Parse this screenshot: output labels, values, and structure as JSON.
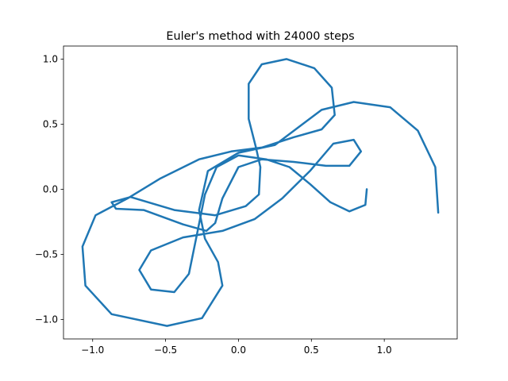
{
  "chart_data": {
    "type": "line",
    "title": "Euler's method with 24000 steps",
    "x": [
      0.88,
      0.87,
      0.76,
      0.63,
      0.49,
      0.35,
      0.19,
      0,
      -0.15,
      -0.23,
      -0.28,
      -0.34,
      -0.44,
      -0.6,
      -0.68,
      -0.6,
      -0.38,
      -0.11,
      0.11,
      0.3,
      0.49,
      0.65,
      0.79,
      0.84,
      0.76,
      0.6,
      0.38,
      0.16,
      0,
      -0.11,
      -0.16,
      -0.22,
      -0.38,
      -0.65,
      -0.84,
      -0.87,
      -0.74,
      -0.44,
      -0.16,
      0.05,
      0.14,
      0.15,
      0.12,
      0.07,
      0.07,
      0.16,
      0.33,
      0.52,
      0.64,
      0.66,
      0.57,
      0.38,
      0.16,
      -0.05,
      -0.27,
      -0.54,
      -0.76,
      -0.98,
      -1.07,
      -1.05,
      -0.87,
      -0.49,
      -0.25,
      -0.11,
      -0.14,
      -0.23,
      -0.27,
      -0.21,
      0,
      0.25,
      0.38,
      0.57,
      0.79,
      1.04,
      1.23,
      1.35,
      1.37
    ],
    "values": [
      0,
      -0.12,
      -0.17,
      -0.1,
      0.04,
      0.17,
      0.23,
      0.26,
      0.17,
      -0.04,
      -0.32,
      -0.65,
      -0.79,
      -0.77,
      -0.62,
      -0.47,
      -0.37,
      -0.32,
      -0.23,
      -0.07,
      0.14,
      0.35,
      0.38,
      0.29,
      0.18,
      0.18,
      0.21,
      0.23,
      0.17,
      -0.07,
      -0.26,
      -0.32,
      -0.27,
      -0.16,
      -0.15,
      -0.1,
      -0.06,
      -0.16,
      -0.2,
      -0.13,
      -0.04,
      0.17,
      0.32,
      0.54,
      0.81,
      0.96,
      1.0,
      0.93,
      0.78,
      0.57,
      0.46,
      0.4,
      0.32,
      0.29,
      0.23,
      0.08,
      -0.07,
      -0.2,
      -0.44,
      -0.74,
      -0.96,
      -1.05,
      -0.99,
      -0.74,
      -0.56,
      -0.38,
      -0.16,
      0.14,
      0.28,
      0.34,
      0.45,
      0.61,
      0.67,
      0.63,
      0.45,
      0.17,
      -0.18
    ],
    "color": "#1f77b4",
    "xlim": [
      -1.2,
      1.5
    ],
    "xticks": [
      {
        "value": -1,
        "label": "−1.0"
      },
      {
        "value": -0.5,
        "label": "−0.5"
      },
      {
        "value": 0,
        "label": "0.0"
      },
      0.5,
      {
        "value": 1,
        "label": "1.0"
      }
    ],
    "ylim": [
      -1.15,
      1.1
    ],
    "yticks": [
      {
        "value": -1,
        "label": "−1.0"
      },
      {
        "value": -0.5,
        "label": "−0.5"
      },
      {
        "value": 0,
        "label": "0.0"
      },
      0.5,
      {
        "value": 1,
        "label": "1.0"
      }
    ]
  }
}
